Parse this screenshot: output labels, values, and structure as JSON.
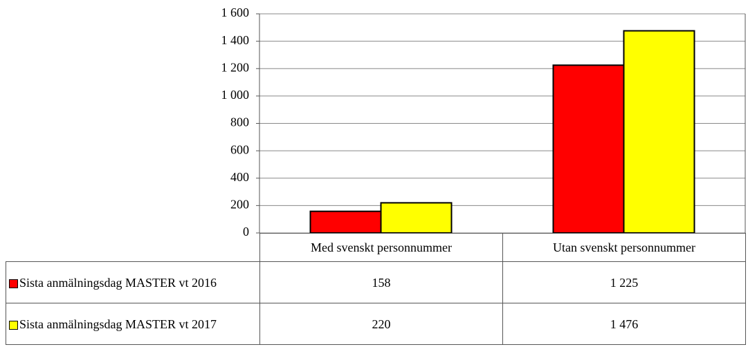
{
  "chart_data": {
    "type": "bar",
    "categories": [
      "Med svenskt personnummer",
      "Utan svenskt personnummer"
    ],
    "series": [
      {
        "name": "Sista anmälningsdag MASTER vt 2016",
        "color": "#ff0000",
        "values": [
          158,
          1225
        ],
        "value_labels": [
          "158",
          "1 225"
        ]
      },
      {
        "name": "Sista anmälningsdag MASTER vt 2017",
        "color": "#ffff00",
        "values": [
          220,
          1476
        ],
        "value_labels": [
          "220",
          "1 476"
        ]
      }
    ],
    "ylim": [
      0,
      1600
    ],
    "yticks": [
      0,
      200,
      400,
      600,
      800,
      {
        "value": 1000,
        "label": "1 000"
      },
      {
        "value": 1200,
        "label": "1 200"
      },
      {
        "value": 1400,
        "label": "1 400"
      },
      {
        "value": 1600,
        "label": "1 600"
      }
    ],
    "grid": true
  }
}
